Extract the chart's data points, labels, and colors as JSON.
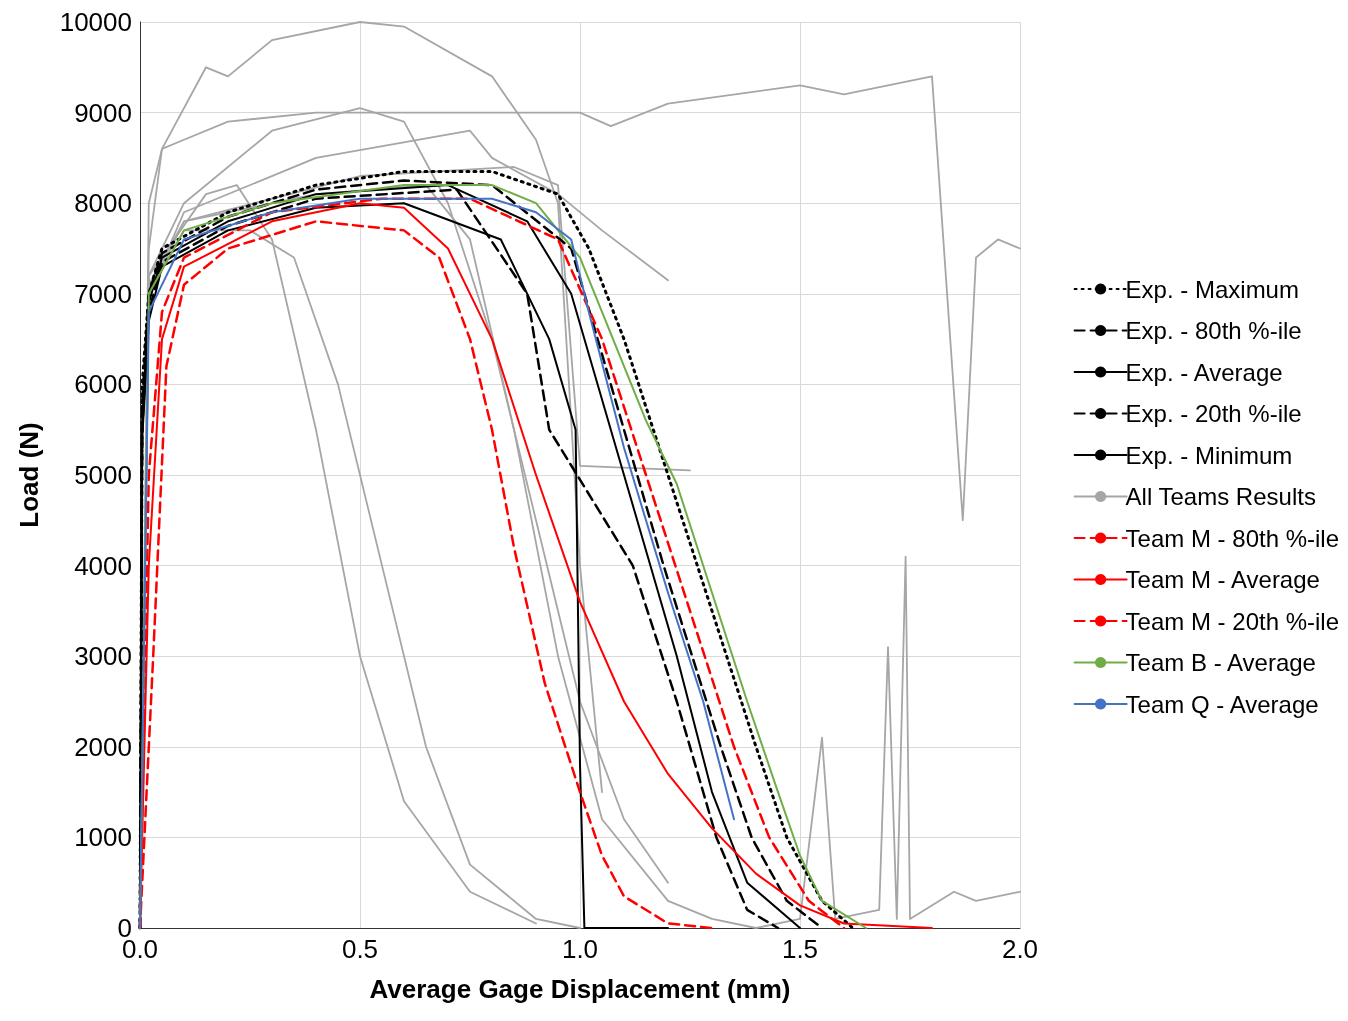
{
  "chart_data": {
    "type": "line",
    "xlabel": "Average Gage Displacement (mm)",
    "ylabel": "Load (N)",
    "xlim": [
      0,
      2
    ],
    "xticks": [
      {
        "value": 0,
        "label": "0.0"
      },
      {
        "value": 0.5,
        "label": "0.5"
      },
      {
        "value": 1,
        "label": "1.0"
      },
      {
        "value": 1.5,
        "label": "1.5"
      },
      {
        "value": 2,
        "label": "2.0"
      }
    ],
    "ylim": [
      0,
      10000
    ],
    "yticks": [
      0,
      1000,
      2000,
      3000,
      4000,
      5000,
      6000,
      7000,
      8000,
      9000,
      10000
    ],
    "grid": true,
    "legend": "right",
    "series": [
      {
        "name": "All Teams Results",
        "color": "#a6a6a6",
        "line_style": "solid",
        "x": [
          0,
          0.02,
          0.05,
          0.1,
          0.2,
          0.4,
          0.7,
          1.0,
          1.07,
          1.2,
          1.5,
          1.6,
          1.8,
          1.87,
          1.9,
          1.95,
          2.0
        ],
        "values": [
          0,
          8000,
          8600,
          8700,
          8900,
          9000,
          9000,
          9000,
          8850,
          9100,
          9300,
          9200,
          9400,
          4500,
          7400,
          7600,
          7500
        ]
      },
      {
        "color": "#a6a6a6",
        "line_style": "solid",
        "x": [
          0,
          0.02,
          0.05,
          0.15,
          0.2,
          0.3,
          0.5,
          0.6,
          0.8,
          0.9,
          0.95,
          1.0,
          1.05
        ],
        "values": [
          0,
          7500,
          8600,
          9500,
          9400,
          9800,
          10000,
          9950,
          9400,
          8700,
          8000,
          4000,
          1500
        ]
      },
      {
        "color": "#a6a6a6",
        "line_style": "solid",
        "x": [
          0,
          0.02,
          0.1,
          0.3,
          0.5,
          0.6,
          0.7,
          0.8,
          0.9,
          1.0,
          1.1,
          1.2
        ],
        "values": [
          0,
          7200,
          8000,
          8800,
          9050,
          8900,
          8000,
          6500,
          4500,
          2500,
          1200,
          500
        ]
      },
      {
        "color": "#a6a6a6",
        "line_style": "solid",
        "x": [
          0,
          0.02,
          0.1,
          0.4,
          0.75,
          0.8,
          0.95,
          1.05,
          1.2
        ],
        "values": [
          0,
          7000,
          7900,
          8500,
          8800,
          8500,
          8100,
          7700,
          7150
        ]
      },
      {
        "color": "#a6a6a6",
        "line_style": "solid",
        "x": [
          0,
          0.02,
          0.1,
          0.25,
          0.35,
          0.45,
          0.55,
          0.65,
          0.75,
          0.9,
          1.0
        ],
        "values": [
          0,
          7000,
          7700,
          7700,
          7400,
          6000,
          4000,
          2000,
          700,
          100,
          0
        ]
      },
      {
        "color": "#a6a6a6",
        "line_style": "solid",
        "x": [
          0,
          0.02,
          0.15,
          0.22,
          0.3,
          0.4,
          0.5,
          0.6,
          0.75,
          0.9
        ],
        "values": [
          0,
          7200,
          8100,
          8200,
          7600,
          5500,
          3000,
          1400,
          400,
          50
        ]
      },
      {
        "color": "#a6a6a6",
        "line_style": "solid",
        "x": [
          0,
          0.02,
          0.1,
          0.5,
          0.85,
          0.95,
          1.0,
          1.25
        ],
        "values": [
          0,
          7100,
          7800,
          8300,
          8400,
          8200,
          5100,
          5050
        ]
      },
      {
        "color": "#a6a6a6",
        "line_style": "solid",
        "x": [
          0,
          0.02,
          0.1,
          0.4,
          0.65,
          0.75,
          0.85,
          0.95,
          1.05,
          1.2,
          1.3,
          1.4,
          1.5,
          1.55,
          1.58,
          1.68,
          1.7,
          1.72,
          1.74,
          1.75,
          1.85,
          1.9,
          2.0
        ],
        "values": [
          0,
          7000,
          7800,
          8100,
          8200,
          7600,
          5500,
          3000,
          1200,
          300,
          100,
          0,
          100,
          2100,
          100,
          200,
          3100,
          100,
          4100,
          100,
          400,
          300,
          400
        ]
      },
      {
        "name": "Exp. - Maximum",
        "color": "#000000",
        "line_style": "dotted",
        "x": [
          0,
          0.005,
          0.02,
          0.05,
          0.2,
          0.4,
          0.6,
          0.8,
          0.95,
          1.02,
          1.1,
          1.2,
          1.3,
          1.4,
          1.47,
          1.55,
          1.62
        ],
        "values": [
          0,
          6000,
          7000,
          7500,
          7900,
          8200,
          8350,
          8350,
          8100,
          7500,
          6500,
          5000,
          3500,
          2000,
          1000,
          300,
          0
        ]
      },
      {
        "name": "Exp. - 80th %-ile",
        "color": "#000000",
        "line_style": "dashed",
        "x": [
          0,
          0.005,
          0.02,
          0.05,
          0.2,
          0.4,
          0.6,
          0.8,
          0.98,
          1.07,
          1.19,
          1.32,
          1.39,
          1.47,
          1.55
        ],
        "values": [
          0,
          5800,
          7000,
          7450,
          7850,
          8150,
          8250,
          8200,
          7500,
          6000,
          4000,
          2000,
          1000,
          300,
          0
        ]
      },
      {
        "name": "Exp. - Average",
        "color": "#000000",
        "line_style": "solid",
        "x": [
          0,
          0.005,
          0.02,
          0.05,
          0.2,
          0.4,
          0.7,
          0.88,
          0.98,
          1.1,
          1.22,
          1.3,
          1.38,
          1.5
        ],
        "values": [
          0,
          5600,
          6900,
          7400,
          7800,
          8100,
          8200,
          7800,
          7000,
          5000,
          3000,
          1500,
          500,
          0
        ]
      },
      {
        "name": "Exp. - 20th %-ile",
        "color": "#000000",
        "line_style": "dashed",
        "x": [
          0,
          0.005,
          0.02,
          0.05,
          0.2,
          0.4,
          0.72,
          0.88,
          0.93,
          1.12,
          1.22,
          1.31,
          1.38,
          1.45
        ],
        "values": [
          0,
          5500,
          6800,
          7350,
          7750,
          8050,
          8150,
          7000,
          5500,
          4000,
          2500,
          1000,
          200,
          0
        ]
      },
      {
        "name": "Exp. - Minimum",
        "color": "#000000",
        "line_style": "solid",
        "x": [
          0,
          0.005,
          0.02,
          0.05,
          0.2,
          0.4,
          0.6,
          0.82,
          0.93,
          0.99,
          1.0,
          1.01,
          1.2
        ],
        "values": [
          0,
          5400,
          6700,
          7300,
          7700,
          7950,
          8000,
          7600,
          6500,
          5500,
          1800,
          0,
          0
        ]
      },
      {
        "name": "Team M - 80th %-ile",
        "color": "#ff0000",
        "line_style": "dashed",
        "x": [
          0,
          0.02,
          0.05,
          0.1,
          0.3,
          0.55,
          0.75,
          0.95,
          1.05,
          1.15,
          1.25,
          1.35,
          1.43,
          1.52,
          1.6
        ],
        "values": [
          0,
          5000,
          6800,
          7400,
          7900,
          8050,
          8050,
          7600,
          6500,
          5000,
          3500,
          2000,
          1000,
          300,
          0
        ]
      },
      {
        "name": "Team M - Average",
        "color": "#ff0000",
        "line_style": "solid",
        "x": [
          0,
          0.02,
          0.05,
          0.1,
          0.3,
          0.5,
          0.6,
          0.7,
          0.8,
          0.9,
          1.0,
          1.1,
          1.2,
          1.3,
          1.4,
          1.5,
          1.6,
          1.8
        ],
        "values": [
          0,
          4000,
          6500,
          7300,
          7800,
          8000,
          7950,
          7500,
          6500,
          5000,
          3600,
          2500,
          1700,
          1100,
          600,
          250,
          50,
          0
        ]
      },
      {
        "name": "Team M - 20th %-ile",
        "color": "#ff0000",
        "line_style": "dashed",
        "x": [
          0,
          0.03,
          0.06,
          0.1,
          0.2,
          0.4,
          0.6,
          0.68,
          0.75,
          0.8,
          0.85,
          0.92,
          1.0,
          1.05,
          1.1,
          1.2,
          1.3
        ],
        "values": [
          0,
          3000,
          6200,
          7100,
          7500,
          7800,
          7700,
          7400,
          6500,
          5500,
          4200,
          2700,
          1500,
          800,
          350,
          50,
          0
        ]
      },
      {
        "name": "Team B - Average",
        "color": "#70ad47",
        "line_style": "solid",
        "x": [
          0,
          0.02,
          0.1,
          0.3,
          0.6,
          0.8,
          0.9,
          1.0,
          1.05,
          1.15,
          1.22,
          1.3,
          1.38,
          1.45,
          1.5,
          1.55,
          1.65
        ],
        "values": [
          0,
          7000,
          7700,
          8000,
          8200,
          8200,
          8000,
          7400,
          6800,
          5600,
          4900,
          3700,
          2500,
          1500,
          800,
          300,
          0
        ]
      },
      {
        "name": "Team Q - Average",
        "color": "#4472c4",
        "line_style": "solid",
        "x": [
          0,
          0.02,
          0.1,
          0.3,
          0.5,
          0.8,
          0.9,
          0.98,
          1.02,
          1.1,
          1.2,
          1.28,
          1.35
        ],
        "values": [
          0,
          6800,
          7600,
          7900,
          8050,
          8050,
          7900,
          7600,
          6800,
          5300,
          3700,
          2500,
          1200
        ]
      }
    ]
  }
}
